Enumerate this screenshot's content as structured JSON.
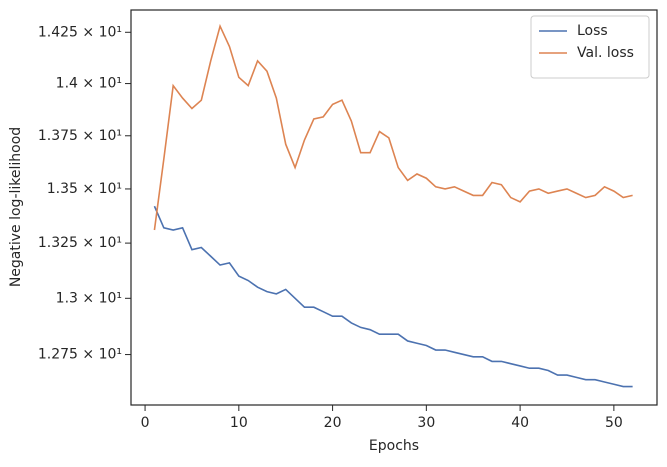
{
  "chart_data": {
    "type": "line",
    "x_label": "Epochs",
    "y_label": "Negative log-likelihood",
    "x": [
      1,
      2,
      3,
      4,
      5,
      6,
      7,
      8,
      9,
      10,
      11,
      12,
      13,
      14,
      15,
      16,
      17,
      18,
      19,
      20,
      21,
      22,
      23,
      24,
      25,
      26,
      27,
      28,
      29,
      30,
      31,
      32,
      33,
      34,
      35,
      36,
      37,
      38,
      39,
      40,
      41,
      42,
      43,
      44,
      45,
      46,
      47,
      48,
      49,
      50,
      51,
      52
    ],
    "series": [
      {
        "name": "Loss",
        "color": "#4c72b0",
        "values": [
          13.42,
          13.32,
          13.31,
          13.32,
          13.22,
          13.23,
          13.19,
          13.15,
          13.16,
          13.1,
          13.08,
          13.05,
          13.03,
          13.02,
          13.04,
          13.0,
          12.96,
          12.96,
          12.94,
          12.92,
          12.92,
          12.89,
          12.87,
          12.86,
          12.84,
          12.84,
          12.84,
          12.81,
          12.8,
          12.79,
          12.77,
          12.77,
          12.76,
          12.75,
          12.74,
          12.74,
          12.72,
          12.72,
          12.71,
          12.7,
          12.69,
          12.69,
          12.68,
          12.66,
          12.66,
          12.65,
          12.64,
          12.64,
          12.63,
          12.62,
          12.61,
          12.61
        ]
      },
      {
        "name": "Val. loss",
        "color": "#dd8452",
        "values": [
          13.31,
          13.64,
          13.99,
          13.93,
          13.88,
          13.92,
          14.11,
          14.28,
          14.18,
          14.03,
          13.99,
          14.11,
          14.06,
          13.93,
          13.71,
          13.6,
          13.73,
          13.83,
          13.84,
          13.9,
          13.92,
          13.82,
          13.67,
          13.67,
          13.77,
          13.74,
          13.6,
          13.54,
          13.57,
          13.55,
          13.51,
          13.5,
          13.51,
          13.49,
          13.47,
          13.47,
          13.53,
          13.52,
          13.46,
          13.44,
          13.49,
          13.5,
          13.48,
          13.49,
          13.5,
          13.48,
          13.46,
          13.47,
          13.51,
          13.49,
          13.46,
          13.47
        ]
      }
    ],
    "xlim": [
      -1.5,
      54.6
    ],
    "xticks": [
      0,
      10,
      20,
      30,
      40,
      50
    ],
    "ylim": [
      12.53,
      14.36
    ],
    "y_scale": "log",
    "yticks": [
      {
        "value": 12.75,
        "label": "1.275 × 10¹"
      },
      {
        "value": 13.0,
        "label": "1.3 × 10¹"
      },
      {
        "value": 13.25,
        "label": "1.325 × 10¹"
      },
      {
        "value": 13.5,
        "label": "1.35 × 10¹"
      },
      {
        "value": 13.75,
        "label": "1.375 × 10¹"
      },
      {
        "value": 14.0,
        "label": "1.4 × 10¹"
      },
      {
        "value": 14.25,
        "label": "1.425 × 10¹"
      }
    ],
    "grid": false,
    "legend": "upper right"
  }
}
